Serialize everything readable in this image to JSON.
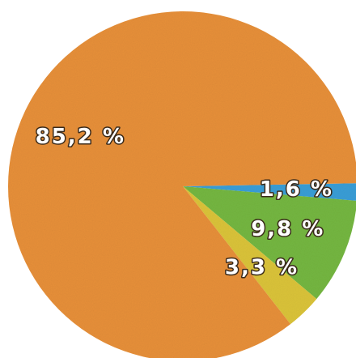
{
  "chart_data": {
    "type": "pie",
    "values": [
      1.6,
      9.8,
      3.3,
      85.2
    ],
    "value_labels": [
      "1,6 %",
      "9,8 %",
      "3,3 %",
      "85,2 %"
    ],
    "colors": [
      "#3a9fd8",
      "#76b843",
      "#dcc53a",
      "#e8913b"
    ]
  }
}
